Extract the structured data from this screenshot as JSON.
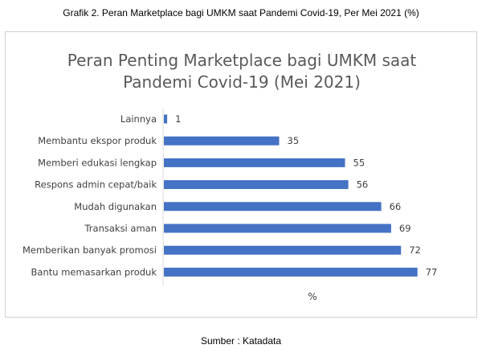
{
  "caption": "Grafik 2. Peran Marketplace bagi UMKM saat Pandemi Covid-19, Per Mei 2021 (%)",
  "source": "Sumber : Katadata",
  "chart_data": {
    "type": "bar",
    "orientation": "horizontal",
    "title_lines": [
      "Peran Penting Marketplace bagi UMKM saat",
      "Pandemi Covid-19 (Mei 2021)"
    ],
    "xlabel": "%",
    "ylabel": "",
    "categories": [
      "Lainnya",
      "Membantu ekspor produk",
      "Memberi edukasi lengkap",
      "Respons admin cepat/baik",
      "Mudah digunakan",
      "Transaksi aman",
      "Memberikan banyak promosi",
      "Bantu memasarkan produk"
    ],
    "values": [
      1,
      35,
      55,
      56,
      66,
      69,
      72,
      77
    ],
    "xlim": [
      0,
      80
    ],
    "grid": false,
    "legend": "none",
    "bar_color": "#4472c4"
  }
}
